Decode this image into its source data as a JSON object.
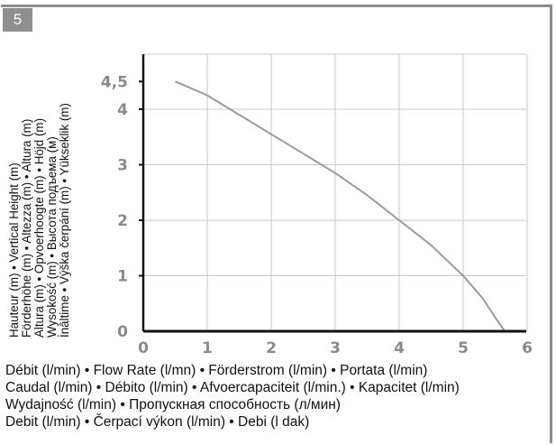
{
  "figure": {
    "number": "5"
  },
  "y_axis_labels": [
    "Hauteur (m) • Vertical Height (m)",
    "Förderhöhe (m) • Altezza (m) • Altura (m)",
    "Altura (m) • Opvoerhoogte (m) • Höjd (m)",
    "Wysokość (m) • Высота подъема  (м)",
    "İnâltime • Výška čerpání (m) • Yükseklik (m)"
  ],
  "x_axis_labels": [
    "Débit (l/min) • Flow Rate (l/mn) • Förderstrom (l/min) • Portata (l/min)",
    "Caudal (l/min) • Débito (l/min) • Afvoercapaciteit (l/min.) • Kapacitet (l/min)",
    "Wydajność (l/min) • Пропускная способность (л/мин)",
    "Debit (l/min) • Čerpací výkon (l/min) • Debi (l dak)"
  ],
  "colors": {
    "badge": "#8f8f8f",
    "curve": "#9a9a9a",
    "grid": "#c9c9c9",
    "axis": "#111111",
    "tick_text": "#8a8a8a"
  },
  "chart_data": {
    "type": "line",
    "xlim": [
      0,
      6
    ],
    "ylim": [
      0,
      4.5
    ],
    "x_ticks": [
      "0",
      "1",
      "2",
      "3",
      "4",
      "5",
      "6"
    ],
    "y_ticks": [
      "0",
      "1",
      "2",
      "3",
      "4",
      "4,5"
    ],
    "grid": true,
    "series": [
      {
        "x": [
          0.5,
          1.0,
          1.5,
          2.0,
          2.5,
          3.0,
          3.5,
          4.0,
          4.5,
          5.0,
          5.3,
          5.5,
          5.65
        ],
        "values": [
          4.5,
          4.25,
          3.9,
          3.55,
          3.2,
          2.85,
          2.45,
          2.0,
          1.55,
          1.0,
          0.6,
          0.25,
          0.0
        ]
      }
    ]
  }
}
